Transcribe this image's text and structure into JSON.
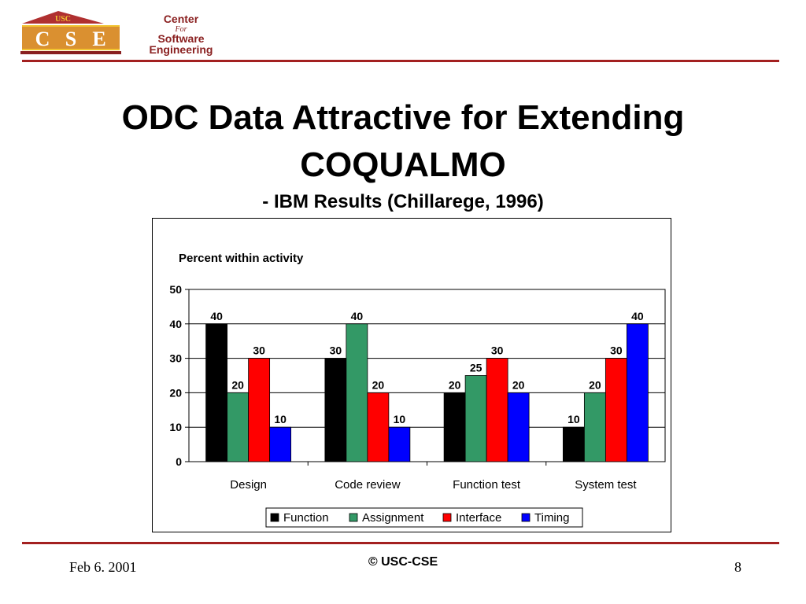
{
  "logo": {
    "badge_text": "USC",
    "letters": [
      "C",
      "S",
      "E"
    ],
    "line1": "Center",
    "line2": "For",
    "line3": "Software",
    "line4": "Engineering"
  },
  "slide": {
    "title_line1": "ODC Data Attractive for Extending",
    "title_line2": "COQUALMO",
    "subtitle": "- IBM Results (Chillarege, 1996)"
  },
  "footer": {
    "date": "Feb 6. 2001",
    "copyright": "© USC-CSE",
    "page": "8"
  },
  "colors": {
    "accent_rule": "#a32020"
  },
  "chart_data": {
    "type": "bar",
    "title": "Percent within activity",
    "xlabel": "",
    "ylabel": "",
    "ylim": [
      0,
      50
    ],
    "yticks": [
      0,
      10,
      20,
      30,
      40,
      50
    ],
    "grid": true,
    "legend": "bottom",
    "categories": [
      "Design",
      "Code review",
      "Function test",
      "System test"
    ],
    "series": [
      {
        "name": "Function",
        "color": "#000000",
        "values": [
          40,
          30,
          20,
          10
        ]
      },
      {
        "name": "Assignment",
        "color": "#339966",
        "values": [
          20,
          40,
          25,
          20
        ]
      },
      {
        "name": "Interface",
        "color": "#ff0000",
        "values": [
          30,
          20,
          30,
          30
        ]
      },
      {
        "name": "Timing",
        "color": "#0000ff",
        "values": [
          10,
          10,
          20,
          40
        ]
      }
    ]
  }
}
